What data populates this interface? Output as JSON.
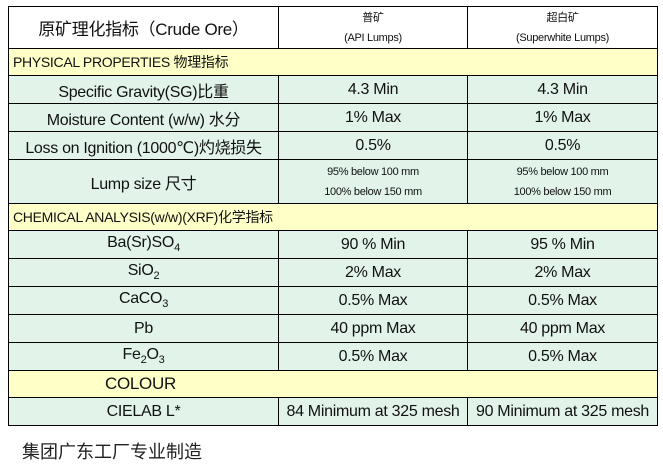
{
  "table": {
    "header": {
      "title": "原矿理化指标（Crude Ore）",
      "columns": [
        [
          "普矿",
          "(API Lumps)"
        ],
        [
          "超白矿",
          "(Superwhite Lumps)"
        ]
      ]
    },
    "sections": [
      {
        "title": "PHYSICAL PROPERTIES  物理指标",
        "rows": [
          {
            "label": [
              "Specific Gravity(SG)比重"
            ],
            "values": [
              "4.3 Min",
              "4.3 Min"
            ]
          },
          {
            "label": [
              "Moisture Content (w/w) 水分"
            ],
            "values": [
              "1% Max",
              "1% Max"
            ]
          },
          {
            "label": [
              "Loss on Ignition (1000℃)灼烧损失"
            ],
            "values": [
              "0.5%",
              "0.5%"
            ]
          },
          {
            "label": [
              "Lump size 尺寸"
            ],
            "values": [
              [
                "95% below 100 mm",
                "100% below 150 mm"
              ],
              [
                "95% below 100 mm",
                "100% below 150 mm"
              ]
            ]
          }
        ]
      },
      {
        "title": "CHEMICAL ANALYSIS(w/w)(XRF)化学指标",
        "rows": [
          {
            "label": [
              "Ba(Sr)SO",
              "4"
            ],
            "values": [
              "90 % Min",
              "95 % Min"
            ]
          },
          {
            "label": [
              "SiO",
              "2"
            ],
            "values": [
              "2% Max",
              "2% Max"
            ]
          },
          {
            "label": [
              "CaCO",
              "3"
            ],
            "values": [
              "0.5% Max",
              "0.5% Max"
            ]
          },
          {
            "label": [
              "Pb"
            ],
            "values": [
              "40 ppm Max",
              "40 ppm Max"
            ]
          },
          {
            "label": [
              "Fe",
              "2",
              "O",
              "3"
            ],
            "values": [
              "0.5% Max",
              "0.5% Max"
            ]
          }
        ]
      },
      {
        "title": "COLOUR",
        "rows": [
          {
            "label": [
              "CIELAB L*"
            ],
            "values": [
              "84 Minimum at 325 mesh",
              "90 Minimum at 325 mesh"
            ]
          }
        ]
      }
    ]
  },
  "footer": "集团广东工厂专业制造"
}
